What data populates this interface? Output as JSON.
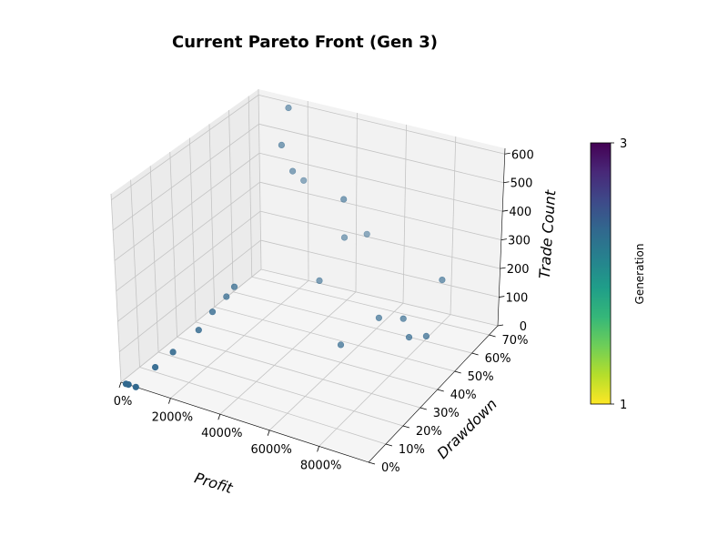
{
  "chart_data": {
    "type": "scatter3d",
    "title": "Current Pareto Front (Gen 3)",
    "xlabel": "Profit",
    "ylabel": "Drawdown",
    "zlabel": "Trade Count",
    "xlim": [
      0,
      10000
    ],
    "ylim": [
      0,
      75
    ],
    "zlim": [
      0,
      620
    ],
    "x_ticks": [
      0,
      2000,
      4000,
      6000,
      8000
    ],
    "x_tick_labels": [
      "0%",
      "2000%",
      "4000%",
      "6000%",
      "8000%"
    ],
    "y_ticks": [
      0,
      10,
      20,
      30,
      40,
      50,
      60,
      70
    ],
    "y_tick_labels": [
      "0%",
      "10%",
      "20%",
      "30%",
      "40%",
      "50%",
      "60%",
      "70%"
    ],
    "z_ticks": [
      0,
      100,
      200,
      300,
      400,
      500,
      600
    ],
    "z_tick_labels": [
      "0",
      "100",
      "200",
      "300",
      "400",
      "500",
      "600"
    ],
    "grid": true,
    "colorbar": {
      "label": "Generation",
      "min": 1,
      "max": 3,
      "tick_labels": [
        "1",
        "3"
      ],
      "colormap": "viridis_r",
      "colors": [
        "#fde725",
        "#b5de2b",
        "#6ece58",
        "#35b779",
        "#1f9e89",
        "#26828e",
        "#31688e",
        "#3e4989",
        "#482878",
        "#440154"
      ]
    },
    "point_color": "#31688e",
    "points": [
      {
        "x": 200,
        "y": 0,
        "z": 0,
        "gen": 2
      },
      {
        "x": 300,
        "y": 0,
        "z": 0,
        "gen": 2
      },
      {
        "x": 600,
        "y": 0,
        "z": 0,
        "gen": 2
      },
      {
        "x": 800,
        "y": 8,
        "z": 30,
        "gen": 2
      },
      {
        "x": 1000,
        "y": 15,
        "z": 50,
        "gen": 2
      },
      {
        "x": 1300,
        "y": 25,
        "z": 80,
        "gen": 2
      },
      {
        "x": 1500,
        "y": 30,
        "z": 120,
        "gen": 2
      },
      {
        "x": 1700,
        "y": 35,
        "z": 150,
        "gen": 2
      },
      {
        "x": 1800,
        "y": 38,
        "z": 170,
        "gen": 2
      },
      {
        "x": 2500,
        "y": 55,
        "z": 580,
        "gen": 2
      },
      {
        "x": 2400,
        "y": 60,
        "z": 680,
        "gen": 2
      },
      {
        "x": 2700,
        "y": 58,
        "z": 480,
        "gen": 2
      },
      {
        "x": 2600,
        "y": 65,
        "z": 410,
        "gen": 2
      },
      {
        "x": 4000,
        "y": 55,
        "z": 150,
        "gen": 2
      },
      {
        "x": 4500,
        "y": 62,
        "z": 270,
        "gen": 2
      },
      {
        "x": 5000,
        "y": 55,
        "z": 450,
        "gen": 2
      },
      {
        "x": 5200,
        "y": 65,
        "z": 280,
        "gen": 2
      },
      {
        "x": 6000,
        "y": 40,
        "z": 60,
        "gen": 2
      },
      {
        "x": 7200,
        "y": 45,
        "z": 150,
        "gen": 2
      },
      {
        "x": 8200,
        "y": 45,
        "z": 170,
        "gen": 2
      },
      {
        "x": 8800,
        "y": 40,
        "z": 150,
        "gen": 2
      },
      {
        "x": 9400,
        "y": 50,
        "z": 300,
        "gen": 2
      },
      {
        "x": 9500,
        "y": 40,
        "z": 170,
        "gen": 2
      }
    ]
  }
}
